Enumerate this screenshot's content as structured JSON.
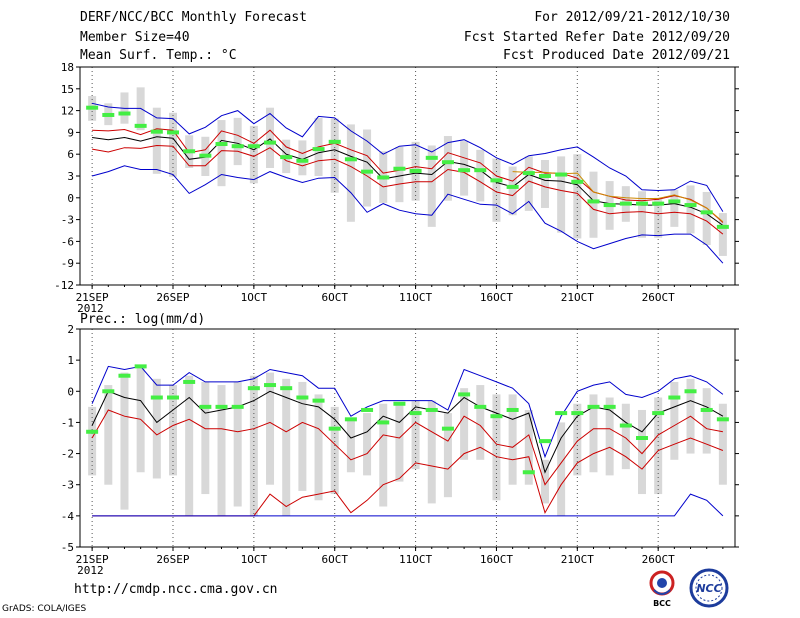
{
  "header": {
    "title": "DERF/NCC/BCC Monthly Forecast",
    "member_size": "Member Size=40",
    "variable": "Mean Surf. Temp.: °C",
    "period": "For 2012/09/21-2012/10/30",
    "started": "Fcst Started Refer Date 2012/09/20",
    "produced": "Fcst Produced Date 2012/09/21"
  },
  "footer": {
    "url": "http://cmdp.ncc.cma.gov.cn",
    "credit": "GrADS: COLA/IGES",
    "logo_left": "BCC",
    "logo_right": "NCC"
  },
  "colors": {
    "upper": "#0000cc",
    "lower": "#0000cc",
    "mid_red": "#cc0000",
    "mean": "#000000",
    "median": "#44ee44",
    "box": "#d8d8d8",
    "obs": "#cc8800"
  },
  "chart_data": [
    {
      "type": "box-line",
      "title": "Mean Surf. Temp.: °C",
      "ylabel": "°C",
      "ylim": [
        -12,
        18
      ],
      "yticks": [
        -12,
        -9,
        -6,
        -3,
        0,
        3,
        6,
        9,
        12,
        15,
        18
      ],
      "x_count": 40,
      "xticks": [
        {
          "i": 0,
          "label": "21SEP",
          "sub": "2012"
        },
        {
          "i": 5,
          "label": "26SEP"
        },
        {
          "i": 10,
          "label": "1OCT"
        },
        {
          "i": 15,
          "label": "6OCT"
        },
        {
          "i": 20,
          "label": "11OCT"
        },
        {
          "i": 25,
          "label": "16OCT"
        },
        {
          "i": 30,
          "label": "21OCT"
        },
        {
          "i": 35,
          "label": "26OCT"
        }
      ],
      "series": [
        {
          "name": "max",
          "values": [
            13.0,
            12.5,
            12.3,
            12.3,
            11.0,
            10.9,
            8.8,
            9.7,
            11.3,
            12.0,
            10.2,
            11.6,
            9.6,
            8.4,
            11.2,
            11.0,
            9.2,
            7.8,
            6.0,
            7.1,
            7.3,
            6.3,
            7.6,
            8.0,
            6.9,
            5.5,
            4.6,
            5.8,
            6.1,
            6.6,
            7.0,
            5.6,
            4.1,
            3.0,
            1.1,
            1.0,
            1.1,
            2.3,
            1.7,
            -1.9
          ]
        },
        {
          "name": "p75",
          "values": [
            9.3,
            9.2,
            9.4,
            8.7,
            9.5,
            9.3,
            6.2,
            6.6,
            9.2,
            8.6,
            7.5,
            9.3,
            7.0,
            6.1,
            7.0,
            7.5,
            6.6,
            5.8,
            3.4,
            3.8,
            4.3,
            4.0,
            6.2,
            5.5,
            4.8,
            3.0,
            2.3,
            4.2,
            3.4,
            3.4,
            2.7,
            0.8,
            0.2,
            -0.3,
            -0.4,
            -0.2,
            0.3,
            -0.2,
            -1.4,
            -3.4
          ]
        },
        {
          "name": "mean",
          "values": [
            8.3,
            8.0,
            8.3,
            7.8,
            8.4,
            8.2,
            5.3,
            5.6,
            7.9,
            7.5,
            6.6,
            8.1,
            6.0,
            5.3,
            6.2,
            6.6,
            5.7,
            4.9,
            2.6,
            3.0,
            3.4,
            3.2,
            5.0,
            4.6,
            3.8,
            2.1,
            1.5,
            3.2,
            2.4,
            2.3,
            1.8,
            -0.4,
            -0.8,
            -0.9,
            -1.0,
            -1.0,
            -0.8,
            -1.3,
            -2.2,
            -3.8
          ]
        },
        {
          "name": "p25",
          "values": [
            6.7,
            6.3,
            6.9,
            6.8,
            7.2,
            7.1,
            4.4,
            4.4,
            6.5,
            6.4,
            5.7,
            6.9,
            5.1,
            4.4,
            5.1,
            5.3,
            4.3,
            3.0,
            1.5,
            1.9,
            2.2,
            2.2,
            3.9,
            3.5,
            2.2,
            0.8,
            0.3,
            2.3,
            1.5,
            1.0,
            0.6,
            -1.6,
            -2.2,
            -2.0,
            -1.9,
            -2.2,
            -2.0,
            -2.2,
            -3.2,
            -5.0
          ]
        },
        {
          "name": "min",
          "values": [
            3.0,
            3.6,
            4.4,
            3.9,
            3.9,
            3.2,
            0.6,
            1.8,
            3.2,
            2.8,
            2.5,
            3.6,
            2.8,
            2.1,
            2.7,
            2.8,
            0.7,
            -2.0,
            -0.8,
            -1.7,
            -2.2,
            -2.4,
            0.5,
            -0.2,
            -0.9,
            -1.0,
            -2.2,
            -0.5,
            -3.5,
            -4.6,
            -6.0,
            -7.0,
            -6.3,
            -5.6,
            -5.1,
            -5.2,
            -5.0,
            -5.0,
            -6.5,
            -9.0
          ]
        },
        {
          "name": "median",
          "values": [
            12.4,
            11.4,
            11.6,
            9.9,
            9.1,
            9.0,
            6.4,
            5.8,
            7.4,
            7.1,
            7.1,
            7.6,
            5.6,
            5.1,
            6.7,
            7.7,
            5.3,
            3.6,
            2.8,
            4.0,
            3.7,
            5.5,
            4.9,
            3.8,
            3.8,
            2.4,
            1.5,
            3.4,
            3.0,
            3.2,
            2.2,
            -0.5,
            -1.0,
            -0.8,
            -0.8,
            -0.8,
            -0.5,
            -1.0,
            -2.0,
            -4.0
          ]
        },
        {
          "name": "box_top",
          "values": [
            14.0,
            13.0,
            14.5,
            15.2,
            12.4,
            11.7,
            8.6,
            8.4,
            10.7,
            11.0,
            9.9,
            12.4,
            8.0,
            7.9,
            11.0,
            10.9,
            10.1,
            9.4,
            6.4,
            7.0,
            7.7,
            7.2,
            8.5,
            7.8,
            6.6,
            5.4,
            4.3,
            5.7,
            5.2,
            5.7,
            6.0,
            3.6,
            2.3,
            1.6,
            0.9,
            0.0,
            1.1,
            1.7,
            0.8,
            -2.1
          ]
        },
        {
          "name": "box_bottom",
          "values": [
            10.6,
            10.0,
            10.2,
            9.3,
            3.3,
            2.9,
            4.1,
            3.0,
            1.6,
            4.5,
            2.0,
            4.1,
            3.4,
            3.1,
            3.0,
            0.7,
            -3.3,
            -1.2,
            -0.7,
            -0.6,
            -0.4,
            -4.0,
            -0.4,
            0.3,
            -0.5,
            -3.3,
            -2.4,
            -1.8,
            -1.4,
            -4.8,
            -5.6,
            -5.5,
            -4.4,
            -3.3,
            -5.5,
            -5.5,
            -4.0,
            -4.9,
            -6.5,
            -8.0
          ]
        }
      ],
      "obs_line": {
        "name": "reference",
        "values": [
          null,
          null,
          null,
          null,
          null,
          null,
          null,
          null,
          null,
          null,
          null,
          null,
          null,
          null,
          null,
          null,
          null,
          null,
          null,
          null,
          null,
          null,
          null,
          null,
          null,
          null,
          3.6,
          3.5,
          3.5,
          3.3,
          3.4,
          0.8,
          0.2,
          0.0,
          -0.1,
          -0.1,
          0.4,
          -0.3,
          -1.4,
          -3.3
        ]
      }
    },
    {
      "type": "box-line",
      "title": "Prec.: log(mm/d)",
      "ylabel": "log(mm/d)",
      "ylim": [
        -5,
        2
      ],
      "yticks": [
        -5,
        -4,
        -3,
        -2,
        -1,
        0,
        1,
        2
      ],
      "x_count": 40,
      "xticks": [
        {
          "i": 0,
          "label": "21SEP",
          "sub": "2012"
        },
        {
          "i": 5,
          "label": "26SEP"
        },
        {
          "i": 10,
          "label": "1OCT"
        },
        {
          "i": 15,
          "label": "6OCT"
        },
        {
          "i": 20,
          "label": "11OCT"
        },
        {
          "i": 25,
          "label": "16OCT"
        },
        {
          "i": 30,
          "label": "21OCT"
        },
        {
          "i": 35,
          "label": "26OCT"
        }
      ],
      "series": [
        {
          "name": "max",
          "values": [
            -0.4,
            0.8,
            0.7,
            0.8,
            0.2,
            0.2,
            0.6,
            0.3,
            0.3,
            0.3,
            0.4,
            0.7,
            0.6,
            0.5,
            0.1,
            0.1,
            -0.8,
            -0.5,
            -0.3,
            -0.3,
            -0.3,
            -0.3,
            -0.6,
            0.7,
            0.5,
            0.3,
            0.1,
            -0.4,
            -2.1,
            -0.8,
            0.0,
            0.2,
            0.3,
            -0.1,
            -0.2,
            0.0,
            0.4,
            0.5,
            0.3,
            -0.1
          ]
        },
        {
          "name": "mean",
          "values": [
            -1.1,
            0.0,
            -0.2,
            -0.3,
            -1.0,
            -0.6,
            -0.2,
            -0.7,
            -0.6,
            -0.5,
            -0.3,
            0.0,
            -0.2,
            -0.4,
            -0.5,
            -0.9,
            -1.5,
            -1.3,
            -0.8,
            -1.0,
            -0.5,
            -0.6,
            -0.7,
            -0.2,
            -0.5,
            -0.7,
            -0.9,
            -0.7,
            -2.6,
            -1.5,
            -0.8,
            -0.5,
            -0.6,
            -1.0,
            -1.3,
            -0.7,
            -0.5,
            -0.3,
            -0.5,
            -0.8
          ]
        },
        {
          "name": "p25",
          "values": [
            -1.5,
            -0.6,
            -0.8,
            -0.9,
            -1.4,
            -1.1,
            -0.9,
            -1.2,
            -1.2,
            -1.3,
            -1.2,
            -1.0,
            -1.3,
            -1.0,
            -1.2,
            -1.7,
            -2.2,
            -2.0,
            -1.4,
            -1.5,
            -1.0,
            -1.3,
            -1.6,
            -0.8,
            -1.1,
            -1.7,
            -1.8,
            -1.4,
            -3.0,
            -2.3,
            -1.6,
            -1.2,
            -1.2,
            -1.5,
            -2.0,
            -1.4,
            -1.1,
            -0.8,
            -1.2,
            -1.3
          ]
        },
        {
          "name": "p10",
          "values": [
            -4.0,
            -4.0,
            -4.0,
            -4.0,
            -4.0,
            -4.0,
            -4.0,
            -4.0,
            -4.0,
            -4.0,
            -4.0,
            -3.3,
            -3.7,
            -3.4,
            -3.3,
            -3.2,
            -3.9,
            -3.5,
            -3.0,
            -2.8,
            -2.3,
            -2.4,
            -2.5,
            -2.0,
            -1.8,
            -2.1,
            -2.2,
            -2.1,
            -3.9,
            -3.0,
            -2.3,
            -2.0,
            -1.8,
            -2.1,
            -2.5,
            -1.9,
            -1.7,
            -1.5,
            -1.7,
            -1.9
          ]
        },
        {
          "name": "min",
          "values": [
            -4.0,
            -4.0,
            -4.0,
            -4.0,
            -4.0,
            -4.0,
            -4.0,
            -4.0,
            -4.0,
            -4.0,
            -4.0,
            -4.0,
            -4.0,
            -4.0,
            -4.0,
            -4.0,
            -4.0,
            -4.0,
            -4.0,
            -4.0,
            -4.0,
            -4.0,
            -4.0,
            -4.0,
            -4.0,
            -4.0,
            -4.0,
            -4.0,
            -4.0,
            -4.0,
            -4.0,
            -4.0,
            -4.0,
            -4.0,
            -4.0,
            -4.0,
            -4.0,
            -3.3,
            -3.5,
            -4.0
          ]
        },
        {
          "name": "median",
          "values": [
            -1.3,
            0.0,
            0.5,
            0.8,
            -0.2,
            -0.2,
            0.3,
            -0.5,
            -0.5,
            -0.5,
            0.1,
            0.2,
            0.1,
            -0.2,
            -0.3,
            -1.2,
            -0.9,
            -0.6,
            -1.0,
            -0.4,
            -0.7,
            -0.6,
            -1.2,
            -0.1,
            -0.5,
            -0.8,
            -0.6,
            -2.6,
            -1.6,
            -0.7,
            -0.7,
            -0.5,
            -0.5,
            -1.1,
            -1.5,
            -0.7,
            -0.2,
            0.0,
            -0.6,
            -0.9
          ]
        },
        {
          "name": "box_top",
          "values": [
            -0.5,
            0.2,
            0.6,
            0.8,
            0.4,
            0.2,
            0.5,
            0.3,
            0.2,
            0.3,
            0.5,
            0.6,
            0.4,
            0.3,
            -0.1,
            -0.5,
            -0.9,
            -0.7,
            -0.4,
            -0.4,
            -0.3,
            -0.3,
            -0.7,
            0.1,
            0.2,
            -0.1,
            -0.1,
            -0.6,
            -2.2,
            -1.0,
            -0.4,
            -0.1,
            -0.2,
            -0.4,
            -0.6,
            -0.2,
            0.3,
            0.4,
            0.1,
            -0.4
          ]
        },
        {
          "name": "box_bottom",
          "values": [
            -2.7,
            -3.0,
            -3.8,
            -2.6,
            -2.8,
            -2.7,
            -4.0,
            -3.3,
            -4.0,
            -3.7,
            -4.0,
            -3.0,
            -4.0,
            -3.2,
            -3.5,
            -3.3,
            -2.6,
            -2.7,
            -3.7,
            -2.9,
            -2.5,
            -3.6,
            -3.4,
            -2.2,
            -2.2,
            -3.5,
            -3.0,
            -3.0,
            -3.6,
            -4.0,
            -2.7,
            -2.6,
            -2.7,
            -2.5,
            -3.3,
            -3.3,
            -2.2,
            -2.0,
            -2.0,
            -3.0
          ]
        }
      ]
    }
  ]
}
